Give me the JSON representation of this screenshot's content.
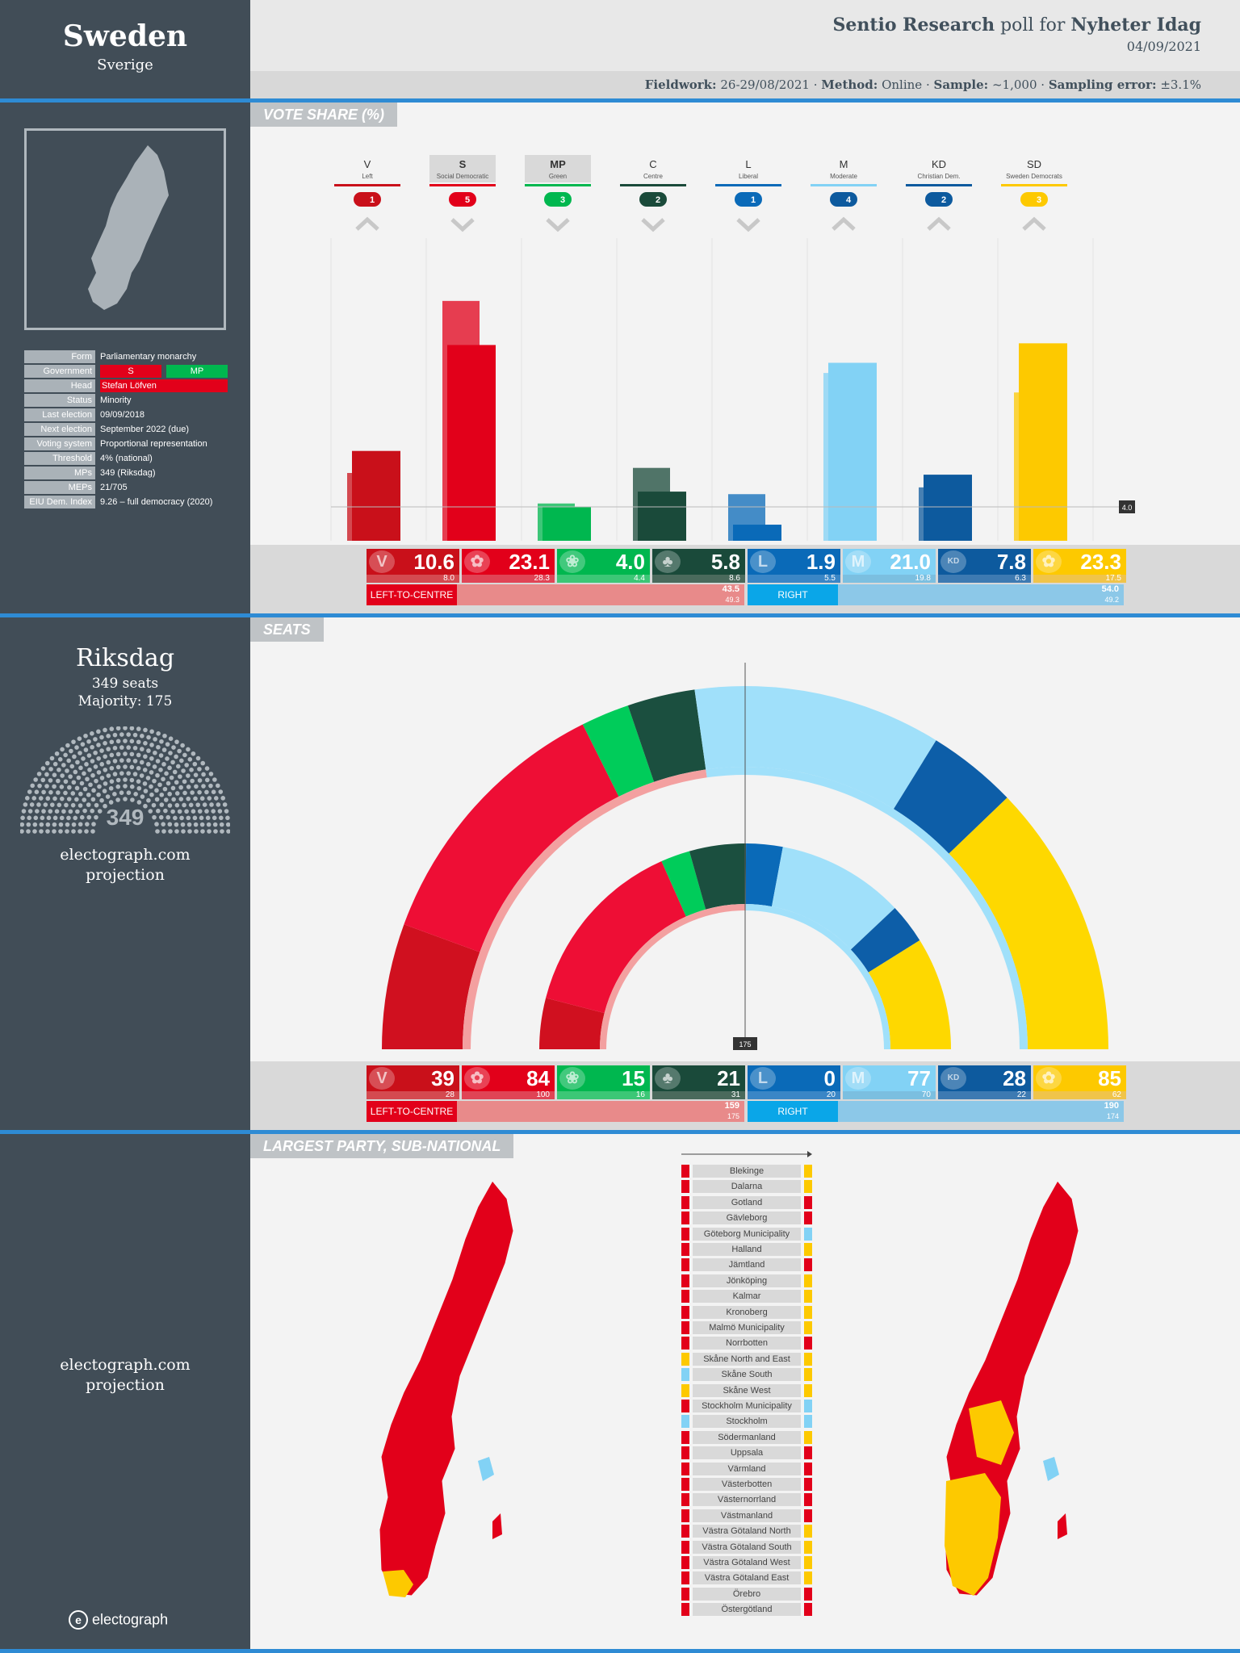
{
  "header": {
    "country": "Sweden",
    "country_native": "Sverige",
    "pollster": "Sentio Research",
    "poll_for_text": "poll for",
    "client": "Nyheter Idag",
    "date": "04/09/2021",
    "fieldwork_label": "Fieldwork:",
    "fieldwork": "26-29/08/2021",
    "method_label": "Method:",
    "method": "Online",
    "sample_label": "Sample:",
    "sample": "~1,000",
    "error_label": "Sampling error:",
    "error": "±3.1%"
  },
  "sections": {
    "vote_share": "VOTE SHARE (%)",
    "seats": "SEATS",
    "subnational": "LARGEST PARTY, SUB-NATIONAL"
  },
  "country_info": [
    {
      "k": "Form",
      "v": "Parliamentary monarchy"
    },
    {
      "k": "Government",
      "v": ""
    },
    {
      "k": "Head",
      "v": "Stefan Löfven"
    },
    {
      "k": "Status",
      "v": "Minority"
    },
    {
      "k": "Last election",
      "v": "09/09/2018"
    },
    {
      "k": "Next election",
      "v": "September 2022 (due)"
    },
    {
      "k": "Voting system",
      "v": "Proportional representation"
    },
    {
      "k": "Threshold",
      "v": "4% (national)"
    },
    {
      "k": "MPs",
      "v": "349 (Riksdag)"
    },
    {
      "k": "MEPs",
      "v": "21/705"
    },
    {
      "k": "EIU Dem. Index",
      "v": "9.26 – full democracy (2020)"
    }
  ],
  "government_parties": [
    "S",
    "MP"
  ],
  "parliament": {
    "name": "Riksdag",
    "seats_text": "349 seats",
    "majority_text": "Majority: 175",
    "seats_total": "349",
    "source": "electograph.com",
    "source2": "projection"
  },
  "subnational_source": {
    "a": "electograph.com",
    "b": "projection"
  },
  "brand": "electograph",
  "colors": {
    "V": "#c9101a",
    "S": "#e2001a",
    "MP": "#00b74f",
    "C": "#1a4a3a",
    "L": "#0a6ab8",
    "M": "#82d2f5",
    "KD": "#0d5a9e",
    "SD": "#fdc900"
  },
  "chart_data": [
    {
      "type": "bar",
      "title": "VOTE SHARE (%)",
      "categories": [
        "V",
        "S",
        "MP",
        "C",
        "L",
        "M",
        "KD",
        "SD"
      ],
      "category_names": [
        "Left",
        "Social Democratic",
        "Green",
        "Centre",
        "Liberal",
        "Moderate",
        "Christian Dem.",
        "Sweden Democrats"
      ],
      "ep_group_seats": [
        "1",
        "5",
        "3",
        "2",
        "1",
        "4",
        "2",
        "3"
      ],
      "trend": [
        "up",
        "down",
        "down",
        "down",
        "down",
        "up",
        "up",
        "up"
      ],
      "series": [
        {
          "name": "Poll",
          "values": [
            10.6,
            23.1,
            4.0,
            5.8,
            1.9,
            21.0,
            7.8,
            23.3
          ]
        },
        {
          "name": "Previous",
          "values": [
            8.0,
            28.3,
            4.4,
            8.6,
            5.5,
            19.8,
            6.3,
            17.5
          ]
        }
      ],
      "threshold_label": "4.0",
      "blocs": [
        {
          "name": "LEFT-TO-CENTRE",
          "value": "43.5",
          "previous": "49.3"
        },
        {
          "name": "RIGHT",
          "value": "54.0",
          "previous": "49.2"
        }
      ]
    },
    {
      "type": "bar",
      "title": "SEATS",
      "categories": [
        "V",
        "S",
        "MP",
        "C",
        "L",
        "M",
        "KD",
        "SD"
      ],
      "series": [
        {
          "name": "Projection",
          "values": [
            39,
            84,
            15,
            21,
            0,
            77,
            28,
            85
          ]
        },
        {
          "name": "Previous",
          "values": [
            28,
            100,
            16,
            31,
            20,
            70,
            22,
            62
          ]
        }
      ],
      "majority_label": "175",
      "blocs": [
        {
          "name": "LEFT-TO-CENTRE",
          "value": "159",
          "previous": "175"
        },
        {
          "name": "RIGHT",
          "value": "190",
          "previous": "174"
        }
      ]
    }
  ],
  "regions": [
    {
      "name": "Blekinge",
      "l": "S",
      "r": "SD"
    },
    {
      "name": "Dalarna",
      "l": "S",
      "r": "SD"
    },
    {
      "name": "Gotland",
      "l": "S",
      "r": "S"
    },
    {
      "name": "Gävleborg",
      "l": "S",
      "r": "S"
    },
    {
      "name": "Göteborg Municipality",
      "l": "S",
      "r": "M"
    },
    {
      "name": "Halland",
      "l": "S",
      "r": "SD"
    },
    {
      "name": "Jämtland",
      "l": "S",
      "r": "S"
    },
    {
      "name": "Jönköping",
      "l": "S",
      "r": "SD"
    },
    {
      "name": "Kalmar",
      "l": "S",
      "r": "SD"
    },
    {
      "name": "Kronoberg",
      "l": "S",
      "r": "SD"
    },
    {
      "name": "Malmö Municipality",
      "l": "S",
      "r": "SD"
    },
    {
      "name": "Norrbotten",
      "l": "S",
      "r": "S"
    },
    {
      "name": "Skåne North and East",
      "l": "SD",
      "r": "SD"
    },
    {
      "name": "Skåne South",
      "l": "M",
      "r": "SD"
    },
    {
      "name": "Skåne West",
      "l": "SD",
      "r": "SD"
    },
    {
      "name": "Stockholm Municipality",
      "l": "S",
      "r": "M"
    },
    {
      "name": "Stockholm",
      "l": "M",
      "r": "M"
    },
    {
      "name": "Södermanland",
      "l": "S",
      "r": "SD"
    },
    {
      "name": "Uppsala",
      "l": "S",
      "r": "S"
    },
    {
      "name": "Värmland",
      "l": "S",
      "r": "S"
    },
    {
      "name": "Västerbotten",
      "l": "S",
      "r": "S"
    },
    {
      "name": "Västernorrland",
      "l": "S",
      "r": "S"
    },
    {
      "name": "Västmanland",
      "l": "S",
      "r": "S"
    },
    {
      "name": "Västra Götaland North",
      "l": "S",
      "r": "SD"
    },
    {
      "name": "Västra Götaland South",
      "l": "S",
      "r": "SD"
    },
    {
      "name": "Västra Götaland West",
      "l": "S",
      "r": "SD"
    },
    {
      "name": "Västra Götaland East",
      "l": "S",
      "r": "SD"
    },
    {
      "name": "Örebro",
      "l": "S",
      "r": "S"
    },
    {
      "name": "Östergötland",
      "l": "S",
      "r": "S"
    }
  ]
}
